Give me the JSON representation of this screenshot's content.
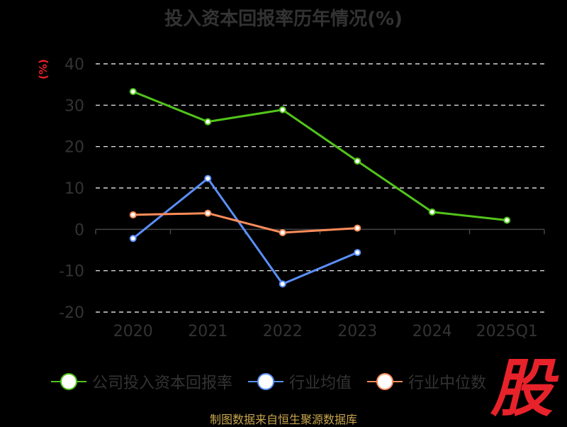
{
  "chart_data": {
    "type": "line",
    "title": "投入资本回报率历年情况(%)",
    "ylabel": "(%)",
    "categories": [
      "2020",
      "2021",
      "2022",
      "2023",
      "2024",
      "2025Q1"
    ],
    "ylim": [
      -20,
      40
    ],
    "yticks": [
      "40",
      "30",
      "20",
      "10",
      "0",
      "-10",
      "-20"
    ],
    "grid": true,
    "legend_position": "bottom",
    "series": [
      {
        "name": "公司投入资本回报率",
        "color": "#52c41a",
        "values": [
          33.3,
          26.0,
          28.9,
          16.5,
          4.2,
          2.2
        ]
      },
      {
        "name": "行业均值",
        "color": "#5b8ff9",
        "values": [
          -2.2,
          12.3,
          -13.2,
          -5.6,
          null,
          null
        ]
      },
      {
        "name": "行业中位数",
        "color": "#ff8c5a",
        "values": [
          3.5,
          3.9,
          -0.8,
          0.3,
          null,
          null
        ]
      }
    ]
  },
  "logo_text": "股",
  "source_text": "制图数据来自恒生聚源数据库"
}
